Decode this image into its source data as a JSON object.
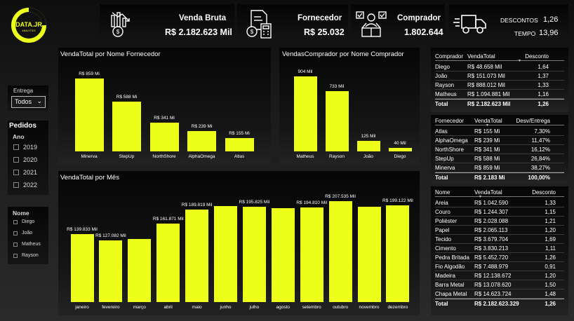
{
  "logo": {
    "text": "DATA.JR",
    "sub": "ANALYTICS"
  },
  "kpis": {
    "venda_bruta": {
      "title": "Venda Bruta",
      "value": "R$ 2.182.623 Mil"
    },
    "fornecedor": {
      "title": "Fornecedor",
      "value": "R$ 25.032"
    },
    "comprador": {
      "title": "Comprador",
      "value": "1.802.644"
    },
    "descontos": {
      "label": "DESCONTOS",
      "value": "1,26"
    },
    "tempo": {
      "label": "TEMPO",
      "value": "13,96"
    }
  },
  "slicers": {
    "entrega": {
      "title": "Entrega",
      "selected": "Todos"
    },
    "pedidos": {
      "title": "Pedidos",
      "sub": "Ano",
      "options": [
        "2019",
        "2020",
        "2021",
        "2022"
      ]
    },
    "nome": {
      "title": "Nome",
      "options": [
        "Diego",
        "João",
        "Matheus",
        "Rayson"
      ]
    }
  },
  "charts": {
    "fornecedor": {
      "title": "VendaTotal por Nome Fornecedor"
    },
    "comprador": {
      "title": "VendasComprador por Nome Comprador"
    },
    "mes": {
      "title": "VendaTotal por Mês"
    }
  },
  "chart_data": [
    {
      "type": "bar",
      "title": "VendaTotal por Nome Fornecedor",
      "categories": [
        "Minerva",
        "StepUp",
        "NorthShore",
        "AlphaOmega",
        "Atlas"
      ],
      "values": [
        859,
        588,
        341,
        239,
        155
      ],
      "labels": [
        "R$ 859 Mi",
        "R$ 588 Mi",
        "R$ 341 Mi",
        "R$ 239 Mi",
        "R$ 155 Mi"
      ],
      "ylim": [
        0,
        900
      ],
      "grid": false
    },
    {
      "type": "bar",
      "title": "VendasComprador por Nome Comprador",
      "categories": [
        "Matheus",
        "Rayson",
        "João",
        "Diego"
      ],
      "values": [
        904,
        733,
        125,
        40
      ],
      "labels": [
        "904 Mil",
        "733 Mil",
        "125 Mil",
        "40 Mil"
      ],
      "ylim": [
        0,
        950
      ],
      "grid": false
    },
    {
      "type": "bar",
      "title": "VendaTotal por Mês",
      "categories": [
        "janeiro",
        "fevereiro",
        "março",
        "abril",
        "maio",
        "junho",
        "julho",
        "agosto",
        "setembro",
        "outubro",
        "novembro",
        "dezembro"
      ],
      "values": [
        139.833,
        127.082,
        129.5,
        161.871,
        189.819,
        197.5,
        195.825,
        193.5,
        194.81,
        207.535,
        196.0,
        199.122
      ],
      "labels": [
        "R$ 139.833 Mil",
        "R$ 127.082 Mil",
        "",
        "R$ 161.871 Mil",
        "R$ 189.819 Mil",
        "",
        "R$ 195.825 Mil",
        "",
        "R$ 194.810 Mil",
        "R$ 207.535 Mil",
        "",
        "R$ 199.122 Mil"
      ],
      "ylim": [
        0,
        215
      ],
      "grid": false
    }
  ],
  "tables": {
    "comprador": {
      "headers": [
        "Comprador",
        "VendaTotal",
        "Desconto"
      ],
      "rows": [
        [
          "Diego",
          "R$ 48.658 Mil",
          "1,64"
        ],
        [
          "João",
          "R$ 151.073 Mil",
          "1,37"
        ],
        [
          "Rayson",
          "R$ 888.012 Mil",
          "1,33"
        ],
        [
          "Matheus",
          "R$ 1.094.881 Mil",
          "1,16"
        ]
      ],
      "total": [
        "Total",
        "R$ 2.182.623 Mil",
        "1,26"
      ]
    },
    "fornecedor": {
      "headers": [
        "Fornecedor",
        "VendaTotal",
        "Desv/Entrega"
      ],
      "rows": [
        [
          "Atlas",
          "R$ 155 Mi",
          "7,30%"
        ],
        [
          "AlphaOmega",
          "R$ 239 Mi",
          "11,47%"
        ],
        [
          "NorthShore",
          "R$ 341 Mi",
          "16,12%"
        ],
        [
          "StepUp",
          "R$ 588 Mi",
          "26,84%"
        ],
        [
          "Minerva",
          "R$ 859 Mi",
          "38,27%"
        ]
      ],
      "total": [
        "Total",
        "R$ 2.183 Mi",
        "100,00%"
      ]
    },
    "produto": {
      "headers": [
        "Nome",
        "VendaTotal",
        "Desconto"
      ],
      "rows": [
        [
          "Areia",
          "R$ 1.042.590",
          "1,33"
        ],
        [
          "Couro",
          "R$ 1.244.307",
          "1,15"
        ],
        [
          "Poliéster",
          "R$ 2.028.088",
          "1,21"
        ],
        [
          "Papel",
          "R$ 2.065.113",
          "1,20"
        ],
        [
          "Tecido",
          "R$ 3.679.704",
          "1,69"
        ],
        [
          "Cimento",
          "R$ 3.830.213",
          "1,11"
        ],
        [
          "Pedra Britada",
          "R$ 5.452.720",
          "1,26"
        ],
        [
          "Fio Algodão",
          "R$ 7.488.979",
          "0,91"
        ],
        [
          "Madeira",
          "R$ 12.138.672",
          "1,20"
        ],
        [
          "Barra Metal",
          "R$ 13.078.620",
          "1,50"
        ],
        [
          "Chapa Metal",
          "R$ 14.623.724",
          "1,48"
        ]
      ],
      "total": [
        "Total",
        "R$ 2.182.623.329",
        "1,26"
      ]
    }
  },
  "colors": {
    "accent": "#ecff1a",
    "background": "#262626",
    "panel": "#0b0b0b"
  }
}
